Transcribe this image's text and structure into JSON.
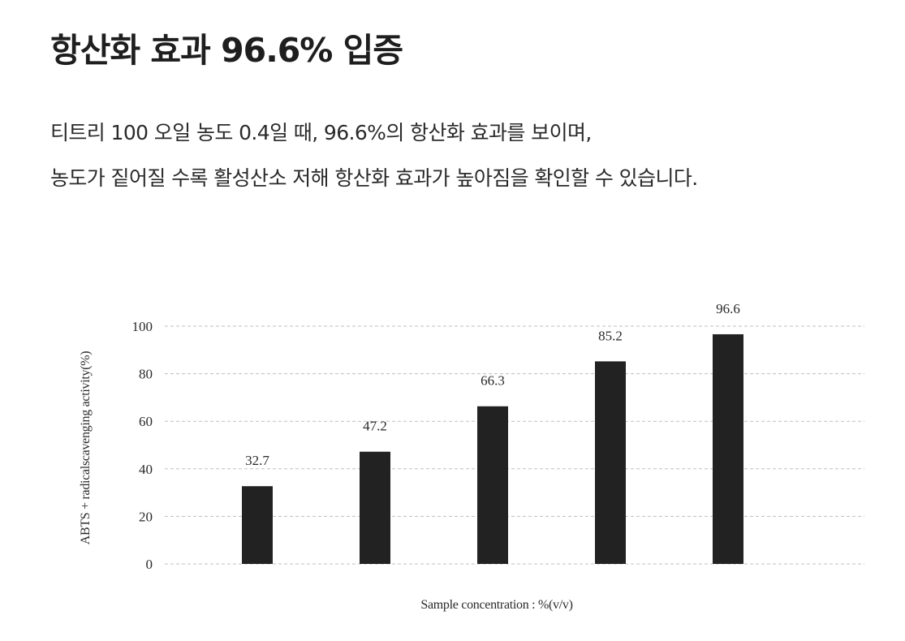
{
  "heading": {
    "title": "항산화 효과 96.6% 입증",
    "line1": "티트리 100 오일 농도 0.4일 때, 96.6%의 항산화 효과를 보이며,",
    "line2": "농도가 짙어질 수록 활성산소  저해 항산화 효과가 높아짐을 확인할 수 있습니다."
  },
  "chart_data": {
    "type": "bar",
    "categories": [
      "",
      "",
      "",
      "",
      ""
    ],
    "values": [
      32.7,
      47.2,
      66.3,
      85.2,
      96.6
    ],
    "data_labels": [
      "32.7",
      "47.2",
      "66.3",
      "85.2",
      "96.6"
    ],
    "title": "",
    "xlabel": "Sample concentration : %(v/v)",
    "ylabel": "ABTS + radicalscavenging activity(%)",
    "ylim": [
      0,
      100
    ],
    "yticks": [
      0,
      20,
      40,
      60,
      80,
      100
    ],
    "grid": "dashed horizontal",
    "bar_color": "#222222",
    "grid_color": "#bfbfbf"
  }
}
